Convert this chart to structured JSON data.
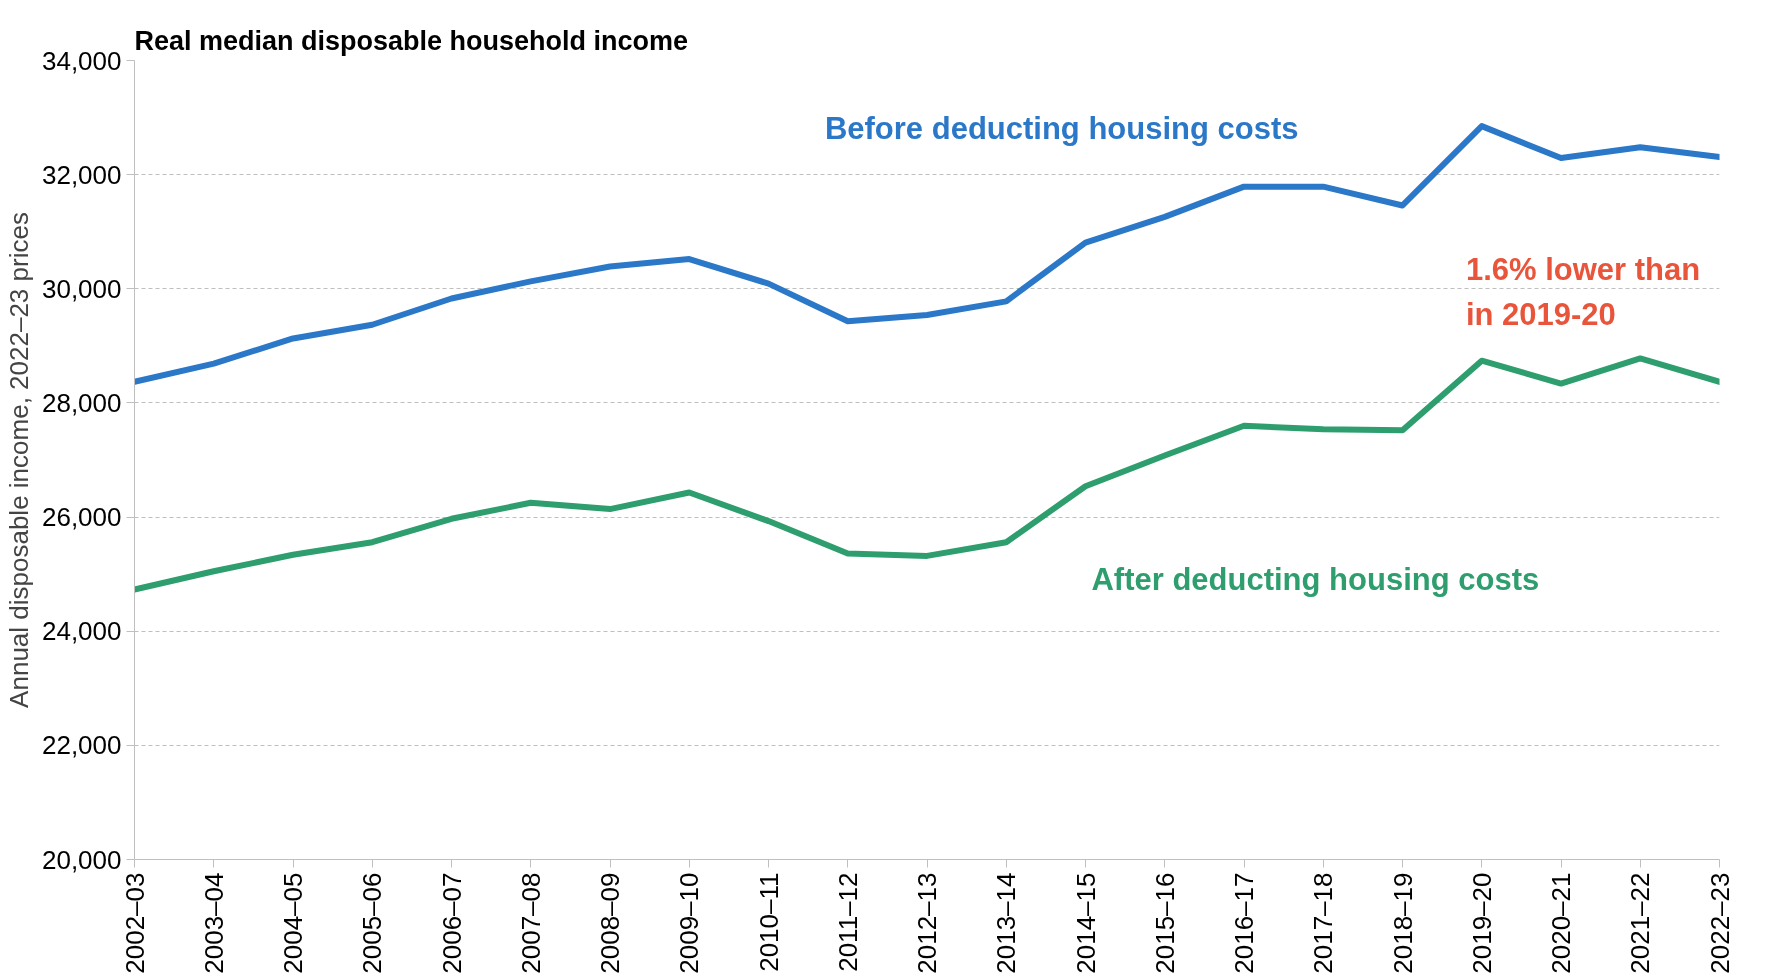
{
  "chart_data": {
    "type": "line",
    "title": "Real median disposable household income",
    "ylabel": "Annual disposable income, 2022–23 prices",
    "categories": [
      "2002–03",
      "2003–04",
      "2004–05",
      "2005–06",
      "2006–07",
      "2007–08",
      "2008–09",
      "2009–10",
      "2010–11",
      "2011–12",
      "2012–13",
      "2013–14",
      "2014–15",
      "2015–16",
      "2016–17",
      "2017–18",
      "2018–19",
      "2019–20",
      "2020–21",
      "2021–22",
      "2022–23"
    ],
    "series": [
      {
        "name": "Before deducting housing costs",
        "color": "#2b78c8",
        "values": [
          28370,
          28690,
          29130,
          29370,
          29830,
          30130,
          30390,
          30520,
          30090,
          29430,
          29540,
          29780,
          30810,
          31260,
          31790,
          31790,
          31460,
          32850,
          32290,
          32480,
          32310
        ]
      },
      {
        "name": "After deducting housing costs",
        "color": "#2e9e6e",
        "values": [
          24730,
          25050,
          25340,
          25560,
          25970,
          26250,
          26140,
          26430,
          25930,
          25360,
          25320,
          25560,
          26540,
          27080,
          27600,
          27540,
          27520,
          28740,
          28340,
          28780,
          28370
        ]
      }
    ],
    "ylim": [
      20000,
      34000
    ],
    "yticks": [
      {
        "value": 20000,
        "label": "20,000"
      },
      {
        "value": 22000,
        "label": "22,000"
      },
      {
        "value": 24000,
        "label": "24,000"
      },
      {
        "value": 26000,
        "label": "26,000"
      },
      {
        "value": 28000,
        "label": "28,000"
      },
      {
        "value": 30000,
        "label": "30,000"
      },
      {
        "value": 32000,
        "label": "32,000"
      },
      {
        "value": 34000,
        "label": "34,000"
      }
    ],
    "grid": "y",
    "legend": false,
    "line_style": "solid",
    "marker": "none",
    "annotations": [
      "1.6% lower than\nin 2019-20"
    ]
  }
}
